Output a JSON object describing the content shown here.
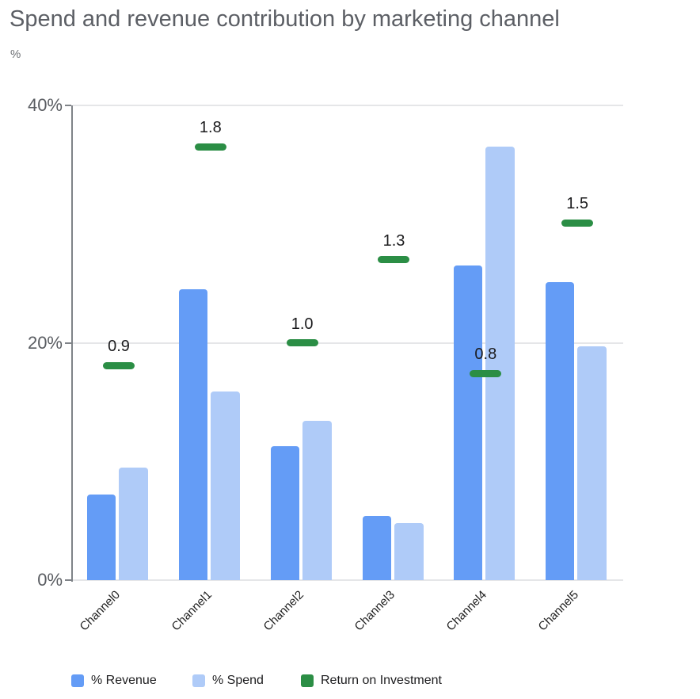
{
  "chart_data": {
    "type": "bar",
    "title": "Spend and revenue contribution by marketing channel",
    "ylabel": "%",
    "categories": [
      "Channel0",
      "Channel1",
      "Channel2",
      "Channel3",
      "Channel4",
      "Channel5"
    ],
    "series": [
      {
        "name": "% Revenue",
        "type": "bar",
        "color": "#649CF6",
        "values": [
          7.2,
          24.5,
          11.3,
          5.4,
          26.5,
          25.1
        ]
      },
      {
        "name": "% Spend",
        "type": "bar",
        "color": "#AFCBF8",
        "values": [
          9.5,
          15.9,
          13.4,
          4.8,
          36.5,
          19.7
        ]
      },
      {
        "name": "Return on Investment",
        "type": "dash_marker",
        "color": "#2B8E45",
        "values": [
          0.9,
          1.8,
          1.0,
          1.3,
          0.8,
          1.5
        ],
        "plotted_at_left_axis_pct": [
          18.1,
          36.5,
          20.0,
          27.0,
          17.4,
          30.1
        ]
      }
    ],
    "yticks": [
      {
        "label": "0%",
        "value": 0
      },
      {
        "label": "20%",
        "value": 20
      },
      {
        "label": "40%",
        "value": 40
      }
    ],
    "ylim": [
      0,
      40
    ],
    "grid": true,
    "legend_position": "bottom"
  }
}
